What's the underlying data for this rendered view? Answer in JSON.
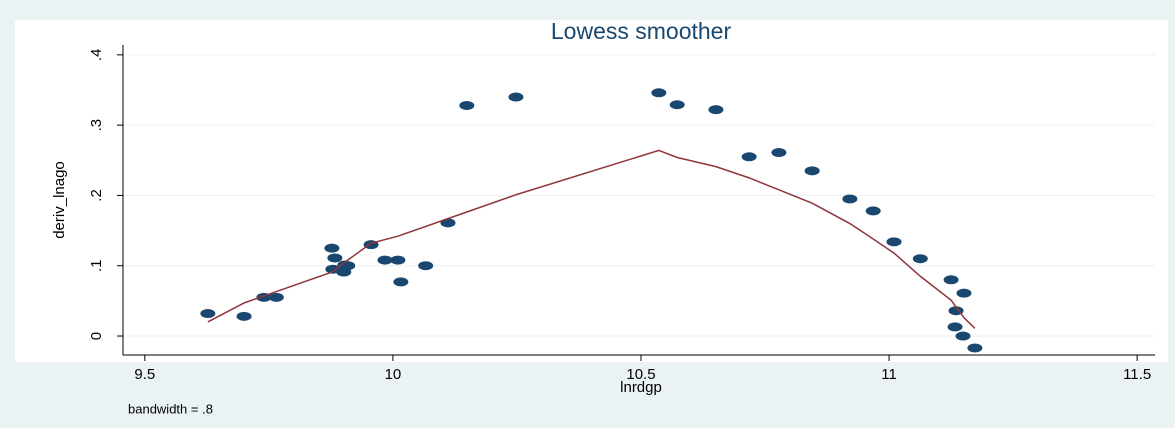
{
  "chart_data": {
    "type": "scatter",
    "title": "Lowess smoother",
    "x_label": "lnrdgp",
    "y_label": "deriv_lnago",
    "note": "bandwidth = .8",
    "xlim": [
      9.456,
      11.536
    ],
    "ylim": [
      -0.027,
      0.414
    ],
    "xticks": [
      9.5,
      10,
      10.5,
      11,
      11.5
    ],
    "yticks": [
      {
        "value": 0,
        "label": "0"
      },
      {
        "value": 0.1,
        "label": ".1"
      },
      {
        "value": 0.2,
        "label": ".2"
      },
      {
        "value": 0.3,
        "label": ".3"
      },
      {
        "value": 0.4,
        "label": ".4"
      }
    ],
    "grid": true,
    "series": [
      {
        "type": "scatter",
        "color": "#1a476f",
        "x": [
          9.627,
          9.7,
          9.74,
          9.765,
          9.877,
          9.883,
          9.879,
          9.901,
          9.903,
          9.909,
          9.956,
          9.984,
          10.01,
          10.016,
          10.066,
          10.111,
          10.149,
          10.248,
          10.536,
          10.573,
          10.651,
          10.718,
          10.778,
          10.845,
          10.921,
          10.968,
          11.01,
          11.063,
          11.125,
          11.151,
          11.135,
          11.133,
          11.149,
          11.173
        ],
        "values": [
          0.032,
          0.028,
          0.055,
          0.055,
          0.125,
          0.111,
          0.095,
          0.091,
          0.101,
          0.1,
          0.13,
          0.108,
          0.108,
          0.077,
          0.1,
          0.161,
          0.328,
          0.34,
          0.346,
          0.329,
          0.322,
          0.255,
          0.261,
          0.235,
          0.195,
          0.178,
          0.134,
          0.11,
          0.08,
          0.061,
          0.036,
          0.013,
          0.0,
          -0.017
        ]
      },
      {
        "type": "line",
        "color": "#90353b",
        "x": [
          9.627,
          9.7,
          9.74,
          9.877,
          9.903,
          9.956,
          10.01,
          10.111,
          10.248,
          10.536,
          10.573,
          10.651,
          10.718,
          10.778,
          10.845,
          10.921,
          10.968,
          11.01,
          11.063,
          11.125,
          11.151,
          11.173
        ],
        "values": [
          0.02,
          0.047,
          0.057,
          0.091,
          0.105,
          0.132,
          0.142,
          0.167,
          0.201,
          0.264,
          0.254,
          0.241,
          0.225,
          0.208,
          0.189,
          0.16,
          0.138,
          0.118,
          0.085,
          0.051,
          0.026,
          0.011
        ]
      }
    ]
  }
}
